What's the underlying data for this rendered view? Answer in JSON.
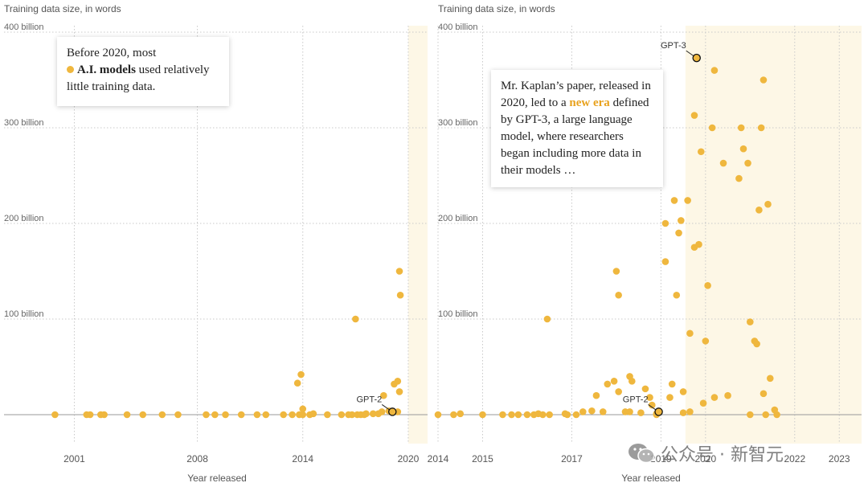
{
  "chart_data": [
    {
      "type": "scatter",
      "ylabel": "Training data size, in words",
      "xlabel": "Year released",
      "y_ticks": [
        "100 billion",
        "200 billion",
        "300 billion",
        "400 billion"
      ],
      "y_tick_values": [
        100,
        200,
        300,
        400
      ],
      "ylim": [
        -35,
        410
      ],
      "xlim": [
        1997.0,
        2021.1
      ],
      "x_ticks": [
        "2001",
        "2008",
        "2014",
        "2020"
      ],
      "x_tick_values": [
        2001,
        2008,
        2014,
        2020
      ],
      "highlight_start": 2020,
      "callout": {
        "line1": "Before 2020, most",
        "bold": "A.I. models",
        "line2": " used relatively",
        "line3": "little training data."
      },
      "annotations": [
        {
          "label": "GPT-2",
          "x": 2019.1,
          "y": 3
        }
      ],
      "series": [
        {
          "color": "#efb73e",
          "points": [
            [
              1999.9,
              0
            ],
            [
              2001.7,
              0
            ],
            [
              2001.9,
              0
            ],
            [
              2002.5,
              0
            ],
            [
              2002.7,
              0
            ],
            [
              2004.0,
              0
            ],
            [
              2004.9,
              0
            ],
            [
              2006.0,
              0
            ],
            [
              2006.9,
              0
            ],
            [
              2008.5,
              0
            ],
            [
              2009.0,
              0
            ],
            [
              2009.6,
              0
            ],
            [
              2010.5,
              0
            ],
            [
              2011.4,
              0
            ],
            [
              2011.9,
              0
            ],
            [
              2012.9,
              0
            ],
            [
              2013.4,
              0
            ],
            [
              2013.7,
              33
            ],
            [
              2013.9,
              42
            ],
            [
              2014.0,
              6
            ],
            [
              2014.0,
              0
            ],
            [
              2013.8,
              0
            ],
            [
              2014.4,
              0
            ],
            [
              2014.6,
              1
            ],
            [
              2015.4,
              0
            ],
            [
              2016.2,
              0
            ],
            [
              2016.6,
              0
            ],
            [
              2016.8,
              0
            ],
            [
              2017.0,
              100
            ],
            [
              2017.1,
              0
            ],
            [
              2017.3,
              0
            ],
            [
              2017.5,
              0
            ],
            [
              2017.6,
              1
            ],
            [
              2018.0,
              1
            ],
            [
              2018.3,
              1
            ],
            [
              2018.5,
              3
            ],
            [
              2018.6,
              20
            ],
            [
              2018.9,
              4
            ],
            [
              2019.2,
              32
            ],
            [
              2019.4,
              35
            ],
            [
              2019.5,
              150
            ],
            [
              2019.55,
              125
            ],
            [
              2019.5,
              24
            ],
            [
              2019.4,
              3
            ]
          ]
        }
      ]
    },
    {
      "type": "scatter",
      "ylabel": "Training data size, in words",
      "xlabel": "Year released",
      "y_ticks": [
        "100 billion",
        "200 billion",
        "300 billion",
        "400 billion"
      ],
      "y_tick_values": [
        100,
        200,
        300,
        400
      ],
      "ylim": [
        -35,
        410
      ],
      "xlim": [
        2014.0,
        2023.5
      ],
      "x_ticks": [
        "2014",
        "2015",
        "2017",
        "2019",
        "2020",
        "2022",
        "2023"
      ],
      "x_tick_values": [
        2014,
        2015,
        2017,
        2019,
        2020,
        2022,
        2023
      ],
      "highlight_start": 2019.55,
      "callout": {
        "line1": "Mr. Kaplan’s paper, released in",
        "line2a": "2020, led to a ",
        "hl": "new era",
        "line2b": " defined",
        "line3": "by GPT-3, a large language",
        "line4": "model, where researchers",
        "line5": "began including more data in",
        "line6": "their models …"
      },
      "annotations": [
        {
          "label": "GPT-3",
          "x": 2019.8,
          "y": 373
        },
        {
          "label": "GPT-2",
          "x": 2018.95,
          "y": 3
        }
      ],
      "series": [
        {
          "color": "#efb73e",
          "points": [
            [
              2014.0,
              0
            ],
            [
              2014.35,
              0
            ],
            [
              2014.5,
              1
            ],
            [
              2015.0,
              0
            ],
            [
              2015.45,
              0
            ],
            [
              2015.65,
              0
            ],
            [
              2015.8,
              0
            ],
            [
              2016.0,
              0
            ],
            [
              2016.15,
              0
            ],
            [
              2016.25,
              1
            ],
            [
              2016.35,
              0
            ],
            [
              2016.5,
              0
            ],
            [
              2016.45,
              100
            ],
            [
              2016.85,
              1
            ],
            [
              2016.9,
              0
            ],
            [
              2017.1,
              0
            ],
            [
              2017.25,
              3
            ],
            [
              2017.45,
              4
            ],
            [
              2017.55,
              20
            ],
            [
              2017.7,
              3
            ],
            [
              2017.8,
              32
            ],
            [
              2017.95,
              35
            ],
            [
              2018.0,
              150
            ],
            [
              2018.05,
              125
            ],
            [
              2018.05,
              24
            ],
            [
              2018.2,
              3
            ],
            [
              2018.3,
              40
            ],
            [
              2018.35,
              35
            ],
            [
              2018.9,
              0
            ],
            [
              2018.3,
              3
            ],
            [
              2018.55,
              2
            ],
            [
              2018.65,
              260
            ],
            [
              2018.65,
              27
            ],
            [
              2018.75,
              18
            ],
            [
              2018.8,
              10
            ],
            [
              2018.9,
              1
            ],
            [
              2019.1,
              200
            ],
            [
              2019.1,
              160
            ],
            [
              2019.2,
              18
            ],
            [
              2019.25,
              32
            ],
            [
              2019.3,
              224
            ],
            [
              2019.35,
              125
            ],
            [
              2019.4,
              190
            ],
            [
              2019.45,
              203
            ],
            [
              2019.5,
              24
            ],
            [
              2019.5,
              2
            ],
            [
              2019.6,
              224
            ],
            [
              2019.65,
              85
            ],
            [
              2019.65,
              3
            ],
            [
              2019.75,
              175
            ],
            [
              2019.8,
              373
            ],
            [
              2019.75,
              313
            ],
            [
              2019.85,
              178
            ],
            [
              2019.9,
              275
            ],
            [
              2019.95,
              12
            ],
            [
              2020.0,
              77
            ],
            [
              2020.05,
              135
            ],
            [
              2020.15,
              300
            ],
            [
              2020.2,
              360
            ],
            [
              2020.2,
              18
            ],
            [
              2020.4,
              263
            ],
            [
              2020.5,
              20
            ],
            [
              2020.75,
              247
            ],
            [
              2020.8,
              300
            ],
            [
              2020.85,
              278
            ],
            [
              2020.95,
              263
            ],
            [
              2021.0,
              97
            ],
            [
              2021.0,
              0
            ],
            [
              2021.1,
              77
            ],
            [
              2021.15,
              74
            ],
            [
              2021.2,
              214
            ],
            [
              2021.25,
              300
            ],
            [
              2021.3,
              350
            ],
            [
              2021.3,
              22
            ],
            [
              2021.35,
              0
            ],
            [
              2021.4,
              220
            ],
            [
              2021.45,
              38
            ],
            [
              2021.55,
              5
            ],
            [
              2021.6,
              0
            ]
          ]
        }
      ]
    }
  ],
  "left": {
    "axis_title": "Training data size, in words",
    "xlabel": "Year released"
  },
  "right": {
    "axis_title": "Training data size, in words",
    "xlabel": "Year released"
  },
  "watermark": {
    "text": "公众号 · 新智元"
  }
}
